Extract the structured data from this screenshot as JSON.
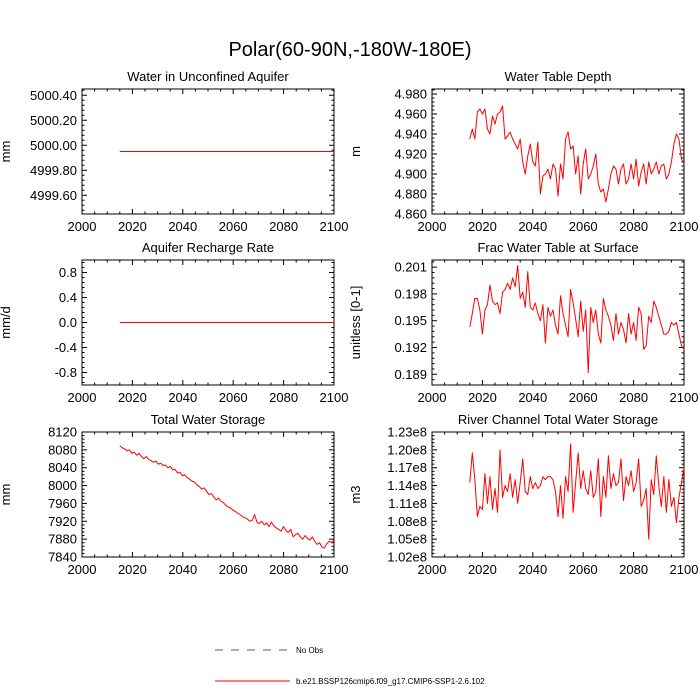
{
  "title": "Polar(60-90N,-180W-180E)",
  "colors": {
    "model": "#ff0000",
    "obs": "#4d4dcc",
    "axis": "#000000"
  },
  "legend": {
    "obs_label": "No Obs",
    "model_label": "b.e21.BSSP126cmip6.f09_g17.CMIP6-SSP1-2.6.102"
  },
  "chart_data": [
    {
      "type": "line",
      "title": "Water in Unconfined Aquifer",
      "ylabel": "mm",
      "xlim": [
        2000,
        2100
      ],
      "ylim": [
        4999.45,
        5000.45
      ],
      "xticks": [
        2000,
        2020,
        2040,
        2060,
        2080,
        2100
      ],
      "yticks": [
        4999.6,
        4999.8,
        5000.0,
        5000.2,
        5000.4
      ],
      "ytick_labels": [
        "4999.60",
        "4999.80",
        "5000.00",
        "5000.20",
        "5000.40"
      ],
      "series": [
        {
          "name": "model",
          "x_start": 2015,
          "x_end": 2100,
          "values": [
            4999.95,
            4999.95
          ]
        }
      ]
    },
    {
      "type": "line",
      "title": "Water Table Depth",
      "ylabel": "m",
      "xlim": [
        2000,
        2100
      ],
      "ylim": [
        4.86,
        4.985
      ],
      "xticks": [
        2000,
        2020,
        2040,
        2060,
        2080,
        2100
      ],
      "yticks": [
        4.86,
        4.88,
        4.9,
        4.92,
        4.94,
        4.96,
        4.98
      ],
      "ytick_labels": [
        "4.860",
        "4.880",
        "4.900",
        "4.920",
        "4.940",
        "4.960",
        "4.980"
      ],
      "series": [
        {
          "name": "model",
          "x_start": 2015,
          "x_end": 2100,
          "values": [
            4.935,
            4.945,
            4.935,
            4.962,
            4.965,
            4.96,
            4.965,
            4.945,
            4.94,
            4.958,
            4.95,
            4.96,
            4.962,
            4.968,
            4.935,
            4.938,
            4.942,
            4.935,
            4.93,
            4.925,
            4.935,
            4.912,
            4.9,
            4.918,
            4.93,
            4.912,
            4.908,
            4.932,
            4.88,
            4.898,
            4.9,
            4.905,
            4.895,
            4.91,
            4.905,
            4.878,
            4.91,
            4.895,
            4.935,
            4.942,
            4.925,
            4.928,
            4.9,
            4.918,
            4.88,
            4.91,
            4.925,
            4.895,
            4.9,
            4.908,
            4.92,
            4.89,
            4.882,
            4.885,
            4.872,
            4.885,
            4.9,
            4.908,
            4.905,
            4.89,
            4.905,
            4.91,
            4.89,
            4.895,
            4.91,
            4.895,
            4.915,
            4.888,
            4.902,
            4.91,
            4.89,
            4.912,
            4.9,
            4.905,
            4.912,
            4.9,
            4.908,
            4.91,
            4.895,
            4.9,
            4.912,
            4.93,
            4.94,
            4.935,
            4.915,
            4.91
          ]
        }
      ]
    },
    {
      "type": "line",
      "title": "Aquifer Recharge Rate",
      "ylabel": "mm/d",
      "xlim": [
        2000,
        2100
      ],
      "ylim": [
        -1.0,
        1.0
      ],
      "xticks": [
        2000,
        2020,
        2040,
        2060,
        2080,
        2100
      ],
      "yticks": [
        -0.8,
        -0.4,
        0.0,
        0.4,
        0.8
      ],
      "ytick_labels": [
        "-0.8",
        "-0.4",
        "0.0",
        "0.4",
        "0.8"
      ],
      "series": [
        {
          "name": "model",
          "x_start": 2015,
          "x_end": 2100,
          "values": [
            0.0,
            0.0
          ]
        }
      ]
    },
    {
      "type": "line",
      "title": "Frac Water Table at Surface",
      "ylabel": "unitless [0-1]",
      "xlim": [
        2000,
        2100
      ],
      "ylim": [
        0.1878,
        0.2018
      ],
      "xticks": [
        2000,
        2020,
        2040,
        2060,
        2080,
        2100
      ],
      "yticks": [
        0.189,
        0.192,
        0.195,
        0.198,
        0.201
      ],
      "ytick_labels": [
        "0.189",
        "0.192",
        "0.195",
        "0.198",
        "0.201"
      ],
      "series": [
        {
          "name": "model",
          "x_start": 2015,
          "x_end": 2100,
          "values": [
            0.1943,
            0.1958,
            0.1975,
            0.1975,
            0.1962,
            0.1935,
            0.1962,
            0.1968,
            0.199,
            0.1972,
            0.1968,
            0.197,
            0.1958,
            0.1982,
            0.1985,
            0.1992,
            0.1985,
            0.1998,
            0.1988,
            0.2012,
            0.1975,
            0.1982,
            0.1965,
            0.2005,
            0.1965,
            0.1962,
            0.197,
            0.1958,
            0.195,
            0.1968,
            0.1925,
            0.1965,
            0.1955,
            0.1962,
            0.1945,
            0.1935,
            0.1978,
            0.1958,
            0.1945,
            0.1932,
            0.1985,
            0.197,
            0.1952,
            0.1932,
            0.1972,
            0.1938,
            0.1962,
            0.1892,
            0.1965,
            0.1948,
            0.1962,
            0.1935,
            0.1925,
            0.1975,
            0.1962,
            0.1955,
            0.1945,
            0.1928,
            0.1958,
            0.1935,
            0.1948,
            0.194,
            0.1925,
            0.1958,
            0.1935,
            0.1948,
            0.1928,
            0.1965,
            0.1958,
            0.1918,
            0.1922,
            0.1955,
            0.1948,
            0.1972,
            0.1965,
            0.1955,
            0.1945,
            0.1935,
            0.1935,
            0.1938,
            0.1948,
            0.1945,
            0.1948,
            0.1935,
            0.1922,
            0.1918
          ]
        }
      ]
    },
    {
      "type": "line",
      "title": "Total Water Storage",
      "ylabel": "mm",
      "xlim": [
        2000,
        2100
      ],
      "ylim": [
        7840,
        8120
      ],
      "xticks": [
        2000,
        2020,
        2040,
        2060,
        2080,
        2100
      ],
      "yticks": [
        7840,
        7880,
        7920,
        7960,
        8000,
        8040,
        8080,
        8120
      ],
      "ytick_labels": [
        "7840",
        "7880",
        "7920",
        "7960",
        "8000",
        "8040",
        "8080",
        "8120"
      ],
      "series": [
        {
          "name": "model",
          "x_start": 2015,
          "x_end": 2100,
          "values": [
            8089,
            8085,
            8082,
            8078,
            8080,
            8072,
            8075,
            8068,
            8072,
            8065,
            8060,
            8065,
            8058,
            8056,
            8052,
            8055,
            8048,
            8050,
            8045,
            8046,
            8040,
            8043,
            8035,
            8036,
            8028,
            8030,
            8022,
            8024,
            8018,
            8014,
            8010,
            8008,
            8002,
            7998,
            7992,
            7995,
            7988,
            7980,
            7982,
            7975,
            7968,
            7972,
            7965,
            7962,
            7956,
            7952,
            7950,
            7945,
            7942,
            7938,
            7935,
            7930,
            7928,
            7925,
            7920,
            7922,
            7935,
            7918,
            7915,
            7920,
            7912,
            7916,
            7908,
            7918,
            7910,
            7905,
            7902,
            7898,
            7908,
            7900,
            7895,
            7902,
            7885,
            7890,
            7893,
            7885,
            7880,
            7888,
            7882,
            7878,
            7885,
            7875,
            7868,
            7872,
            7862,
            7860,
            7870,
            7875,
            7873,
            7878
          ]
        }
      ]
    },
    {
      "type": "line",
      "title": "River Channel Total Water Storage",
      "ylabel": "m3",
      "xlim": [
        2000,
        2100
      ],
      "ylim": [
        102000000.0,
        123000000.0
      ],
      "xticks": [
        2000,
        2020,
        2040,
        2060,
        2080,
        2100
      ],
      "yticks": [
        102000000.0,
        105000000.0,
        108000000.0,
        111000000.0,
        114000000.0,
        117000000.0,
        120000000.0,
        123000000.0
      ],
      "ytick_labels": [
        "1.02e8",
        "1.05e8",
        "1.08e8",
        "1.11e8",
        "1.14e8",
        "1.17e8",
        "1.20e8",
        "1.23e8"
      ],
      "series": [
        {
          "name": "model",
          "x_start": 2015,
          "x_end": 2100,
          "values": [
            114500000.0,
            119500000.0,
            115000000.0,
            108800000.0,
            110500000.0,
            110000000.0,
            116000000.0,
            111000000.0,
            115500000.0,
            110000000.0,
            113500000.0,
            109500000.0,
            120000000.0,
            112000000.0,
            114000000.0,
            113000000.0,
            116000000.0,
            112000000.0,
            115000000.0,
            111000000.0,
            114500000.0,
            118500000.0,
            113000000.0,
            112500000.0,
            115500000.0,
            113500000.0,
            114500000.0,
            113500000.0,
            114000000.0,
            115500000.0,
            115000000.0,
            115500000.0,
            115500000.0,
            115000000.0,
            113000000.0,
            108800000.0,
            114000000.0,
            108500000.0,
            115500000.0,
            113000000.0,
            121000000.0,
            109500000.0,
            114500000.0,
            119500000.0,
            113500000.0,
            116500000.0,
            113500000.0,
            112500000.0,
            116500000.0,
            112000000.0,
            113000000.0,
            118500000.0,
            108800000.0,
            115500000.0,
            112000000.0,
            119000000.0,
            113500000.0,
            116000000.0,
            114000000.0,
            114500000.0,
            118500000.0,
            111500000.0,
            115500000.0,
            114000000.0,
            116500000.0,
            113000000.0,
            114500000.0,
            118500000.0,
            110500000.0,
            111500000.0,
            113500000.0,
            105000000.0,
            115000000.0,
            112500000.0,
            119000000.0,
            114000000.0,
            110500000.0,
            115500000.0,
            109500000.0,
            115000000.0,
            110500000.0,
            112000000.0,
            107800000.0,
            112000000.0,
            114500000.0,
            117000000.0
          ]
        }
      ]
    }
  ]
}
